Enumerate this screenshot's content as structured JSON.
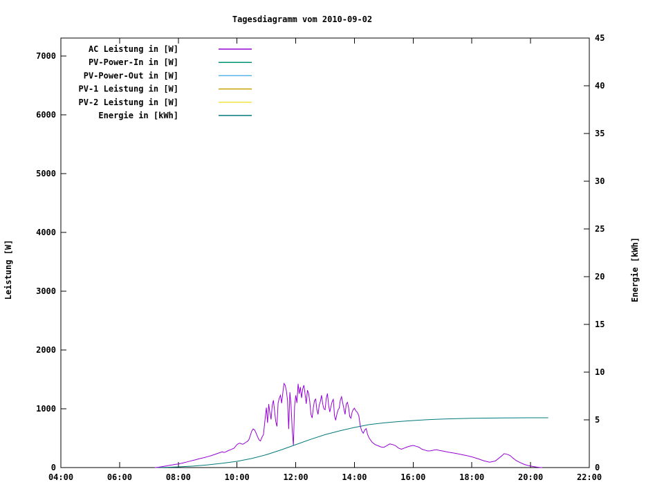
{
  "chart": {
    "title": "Tagesdiagramm vom 2010-09-02",
    "ylabel_left": "Leistung [W]",
    "ylabel_right": "Energie [kWh]"
  },
  "chart_data": {
    "type": "line",
    "title": "Tagesdiagramm vom 2010-09-02",
    "xlabel": "",
    "ylabel_left": "Leistung [W]",
    "ylabel_right": "Energie [kWh]",
    "grid": false,
    "legend_position": "top-left-inside",
    "x_axis": {
      "min_hour": 4,
      "max_hour": 22,
      "tick_hours": [
        4,
        6,
        8,
        10,
        12,
        14,
        16,
        18,
        20,
        22
      ],
      "tick_labels": [
        "04:00",
        "06:00",
        "08:00",
        "10:00",
        "12:00",
        "14:00",
        "16:00",
        "18:00",
        "20:00",
        "22:00"
      ]
    },
    "y_axis_left": {
      "min": 0,
      "max": 7306,
      "ticks": [
        0,
        1000,
        2000,
        3000,
        4000,
        5000,
        6000,
        7000
      ],
      "tick_labels": [
        "0",
        "1000",
        "2000",
        "3000",
        "4000",
        "5000",
        "6000",
        "7000"
      ]
    },
    "y_axis_right": {
      "min": 0,
      "max": 45,
      "ticks": [
        0,
        5,
        10,
        15,
        20,
        25,
        30,
        35,
        40,
        45
      ],
      "tick_labels": [
        "0",
        "5",
        "10",
        "15",
        "20",
        "25",
        "30",
        "35",
        "40",
        "45"
      ]
    },
    "legend": [
      {
        "label": "AC Leistung in [W]",
        "color": "#9400d3"
      },
      {
        "label": "PV-Power-In in [W]",
        "color": "#009273"
      },
      {
        "label": "PV-Power-Out in [W]",
        "color": "#56b4e9"
      },
      {
        "label": "PV-1 Leistung in [W]",
        "color": "#c8a200"
      },
      {
        "label": "PV-2 Leistung in [W]",
        "color": "#efe642"
      },
      {
        "label": "Energie in [kWh]",
        "color": "#00787a"
      }
    ],
    "series": [
      {
        "name": "AC Leistung in [W]",
        "axis": "left",
        "color": "#9400d3",
        "visible": true,
        "points": [
          [
            7.2,
            0
          ],
          [
            7.3,
            5
          ],
          [
            7.4,
            12
          ],
          [
            7.5,
            20
          ],
          [
            7.6,
            28
          ],
          [
            7.7,
            38
          ],
          [
            7.8,
            46
          ],
          [
            7.9,
            54
          ],
          [
            8.0,
            62
          ],
          [
            8.1,
            72
          ],
          [
            8.2,
            84
          ],
          [
            8.3,
            96
          ],
          [
            8.4,
            110
          ],
          [
            8.5,
            122
          ],
          [
            8.6,
            134
          ],
          [
            8.7,
            148
          ],
          [
            8.8,
            160
          ],
          [
            8.9,
            172
          ],
          [
            9.0,
            186
          ],
          [
            9.1,
            200
          ],
          [
            9.2,
            216
          ],
          [
            9.3,
            234
          ],
          [
            9.4,
            252
          ],
          [
            9.5,
            268
          ],
          [
            9.55,
            258
          ],
          [
            9.6,
            262
          ],
          [
            9.7,
            288
          ],
          [
            9.8,
            308
          ],
          [
            9.9,
            330
          ],
          [
            9.95,
            360
          ],
          [
            10.0,
            392
          ],
          [
            10.05,
            408
          ],
          [
            10.1,
            415
          ],
          [
            10.15,
            402
          ],
          [
            10.2,
            398
          ],
          [
            10.25,
            412
          ],
          [
            10.3,
            430
          ],
          [
            10.35,
            444
          ],
          [
            10.4,
            468
          ],
          [
            10.45,
            540
          ],
          [
            10.5,
            618
          ],
          [
            10.55,
            658
          ],
          [
            10.6,
            640
          ],
          [
            10.65,
            585
          ],
          [
            10.7,
            525
          ],
          [
            10.75,
            472
          ],
          [
            10.8,
            452
          ],
          [
            10.85,
            515
          ],
          [
            10.9,
            560
          ],
          [
            10.95,
            795
          ],
          [
            11.0,
            1020
          ],
          [
            11.04,
            760
          ],
          [
            11.08,
            1080
          ],
          [
            11.12,
            930
          ],
          [
            11.16,
            820
          ],
          [
            11.2,
            1055
          ],
          [
            11.24,
            1145
          ],
          [
            11.28,
            960
          ],
          [
            11.32,
            780
          ],
          [
            11.36,
            700
          ],
          [
            11.4,
            1100
          ],
          [
            11.44,
            1180
          ],
          [
            11.48,
            1230
          ],
          [
            11.52,
            1095
          ],
          [
            11.56,
            1270
          ],
          [
            11.6,
            1430
          ],
          [
            11.64,
            1400
          ],
          [
            11.68,
            1310
          ],
          [
            11.72,
            1140
          ],
          [
            11.76,
            655
          ],
          [
            11.8,
            1280
          ],
          [
            11.84,
            1060
          ],
          [
            11.88,
            640
          ],
          [
            11.92,
            380
          ],
          [
            11.96,
            1040
          ],
          [
            12.0,
            1230
          ],
          [
            12.04,
            1100
          ],
          [
            12.08,
            1425
          ],
          [
            12.12,
            1255
          ],
          [
            12.16,
            1370
          ],
          [
            12.2,
            1185
          ],
          [
            12.24,
            1340
          ],
          [
            12.28,
            1400
          ],
          [
            12.32,
            1245
          ],
          [
            12.36,
            1085
          ],
          [
            12.4,
            1315
          ],
          [
            12.44,
            1260
          ],
          [
            12.48,
            1120
          ],
          [
            12.52,
            905
          ],
          [
            12.56,
            845
          ],
          [
            12.6,
            1015
          ],
          [
            12.64,
            1140
          ],
          [
            12.68,
            1165
          ],
          [
            12.72,
            985
          ],
          [
            12.76,
            905
          ],
          [
            12.8,
            1060
          ],
          [
            12.84,
            1125
          ],
          [
            12.88,
            1230
          ],
          [
            12.92,
            1080
          ],
          [
            12.96,
            1000
          ],
          [
            13.0,
            985
          ],
          [
            13.04,
            1175
          ],
          [
            13.08,
            1260
          ],
          [
            13.12,
            1065
          ],
          [
            13.16,
            945
          ],
          [
            13.2,
            1040
          ],
          [
            13.24,
            1120
          ],
          [
            13.28,
            1160
          ],
          [
            13.32,
            885
          ],
          [
            13.36,
            805
          ],
          [
            13.4,
            905
          ],
          [
            13.44,
            980
          ],
          [
            13.48,
            1010
          ],
          [
            13.52,
            1150
          ],
          [
            13.56,
            1205
          ],
          [
            13.6,
            1100
          ],
          [
            13.64,
            1000
          ],
          [
            13.68,
            905
          ],
          [
            13.72,
            1080
          ],
          [
            13.76,
            1110
          ],
          [
            13.8,
            1020
          ],
          [
            13.84,
            865
          ],
          [
            13.88,
            840
          ],
          [
            13.92,
            940
          ],
          [
            13.96,
            990
          ],
          [
            14.0,
            1010
          ],
          [
            14.05,
            962
          ],
          [
            14.1,
            938
          ],
          [
            14.15,
            882
          ],
          [
            14.2,
            705
          ],
          [
            14.25,
            622
          ],
          [
            14.3,
            585
          ],
          [
            14.35,
            638
          ],
          [
            14.4,
            662
          ],
          [
            14.45,
            562
          ],
          [
            14.5,
            502
          ],
          [
            14.6,
            432
          ],
          [
            14.7,
            392
          ],
          [
            14.8,
            372
          ],
          [
            14.9,
            352
          ],
          [
            15.0,
            345
          ],
          [
            15.1,
            372
          ],
          [
            15.2,
            402
          ],
          [
            15.3,
            392
          ],
          [
            15.4,
            372
          ],
          [
            15.5,
            332
          ],
          [
            15.6,
            312
          ],
          [
            15.7,
            332
          ],
          [
            15.8,
            352
          ],
          [
            15.9,
            366
          ],
          [
            16.0,
            376
          ],
          [
            16.1,
            362
          ],
          [
            16.2,
            346
          ],
          [
            16.3,
            312
          ],
          [
            16.4,
            296
          ],
          [
            16.5,
            282
          ],
          [
            16.6,
            286
          ],
          [
            16.7,
            296
          ],
          [
            16.8,
            302
          ],
          [
            16.9,
            292
          ],
          [
            17.0,
            282
          ],
          [
            17.2,
            262
          ],
          [
            17.4,
            246
          ],
          [
            17.6,
            226
          ],
          [
            17.8,
            206
          ],
          [
            18.0,
            182
          ],
          [
            18.2,
            152
          ],
          [
            18.4,
            116
          ],
          [
            18.6,
            92
          ],
          [
            18.8,
            112
          ],
          [
            19.0,
            192
          ],
          [
            19.1,
            236
          ],
          [
            19.2,
            226
          ],
          [
            19.3,
            206
          ],
          [
            19.4,
            162
          ],
          [
            19.5,
            122
          ],
          [
            19.6,
            96
          ],
          [
            19.7,
            72
          ],
          [
            19.8,
            52
          ],
          [
            19.9,
            36
          ],
          [
            20.0,
            26
          ],
          [
            20.1,
            16
          ],
          [
            20.2,
            8
          ],
          [
            20.3,
            3
          ],
          [
            20.4,
            0
          ]
        ]
      },
      {
        "name": "PV-Power-In in [W]",
        "axis": "left",
        "color": "#009273",
        "visible": false,
        "points": []
      },
      {
        "name": "PV-Power-Out in [W]",
        "axis": "left",
        "color": "#56b4e9",
        "visible": false,
        "points": []
      },
      {
        "name": "PV-1 Leistung in [W]",
        "axis": "left",
        "color": "#c8a200",
        "visible": false,
        "points": []
      },
      {
        "name": "PV-2 Leistung in [W]",
        "axis": "left",
        "color": "#efe642",
        "visible": false,
        "points": []
      },
      {
        "name": "Energie in [kWh]",
        "axis": "right",
        "color": "#00787a",
        "visible": true,
        "points": [
          [
            7.2,
            0.0
          ],
          [
            7.6,
            0.03
          ],
          [
            8.0,
            0.07
          ],
          [
            8.5,
            0.15
          ],
          [
            9.0,
            0.28
          ],
          [
            9.5,
            0.45
          ],
          [
            10.0,
            0.65
          ],
          [
            10.5,
            0.95
          ],
          [
            11.0,
            1.35
          ],
          [
            11.5,
            1.85
          ],
          [
            12.0,
            2.4
          ],
          [
            12.5,
            2.95
          ],
          [
            13.0,
            3.45
          ],
          [
            13.5,
            3.85
          ],
          [
            14.0,
            4.2
          ],
          [
            14.5,
            4.5
          ],
          [
            15.0,
            4.68
          ],
          [
            15.5,
            4.82
          ],
          [
            16.0,
            4.93
          ],
          [
            16.5,
            5.02
          ],
          [
            17.0,
            5.08
          ],
          [
            17.5,
            5.13
          ],
          [
            18.0,
            5.16
          ],
          [
            18.5,
            5.18
          ],
          [
            19.0,
            5.2
          ],
          [
            19.5,
            5.21
          ],
          [
            20.0,
            5.22
          ],
          [
            20.6,
            5.22
          ]
        ]
      }
    ]
  }
}
